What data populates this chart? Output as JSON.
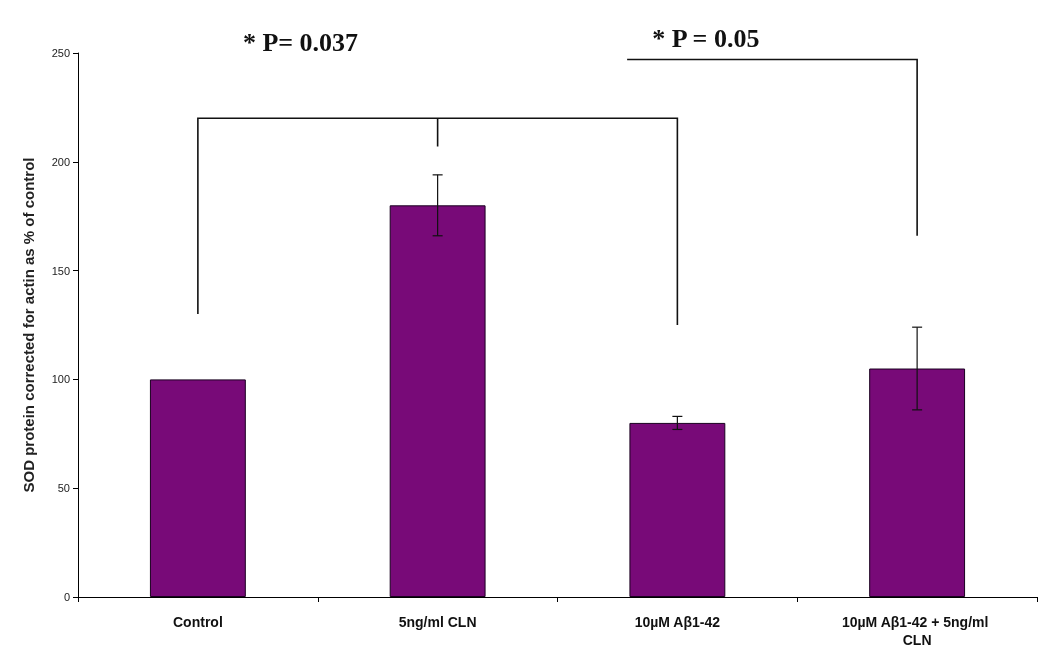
{
  "chart_data": {
    "type": "bar",
    "ylabel": "SOD protein corrected for actin as % of control",
    "categories": [
      "Control",
      "5ng/ml CLN",
      "10µM Aβ1-42",
      "10µM Aβ1-42 + 5ng/ml CLN"
    ],
    "values": [
      100,
      180,
      80,
      105
    ],
    "errors": [
      null,
      14,
      3,
      19
    ],
    "color": "#780a78",
    "ylim": [
      0,
      250
    ],
    "yticks": [
      0,
      50,
      100,
      150,
      200,
      250
    ],
    "grid": false,
    "annotations": [
      "*  P= 0.037",
      "*  P = 0.05"
    ]
  }
}
